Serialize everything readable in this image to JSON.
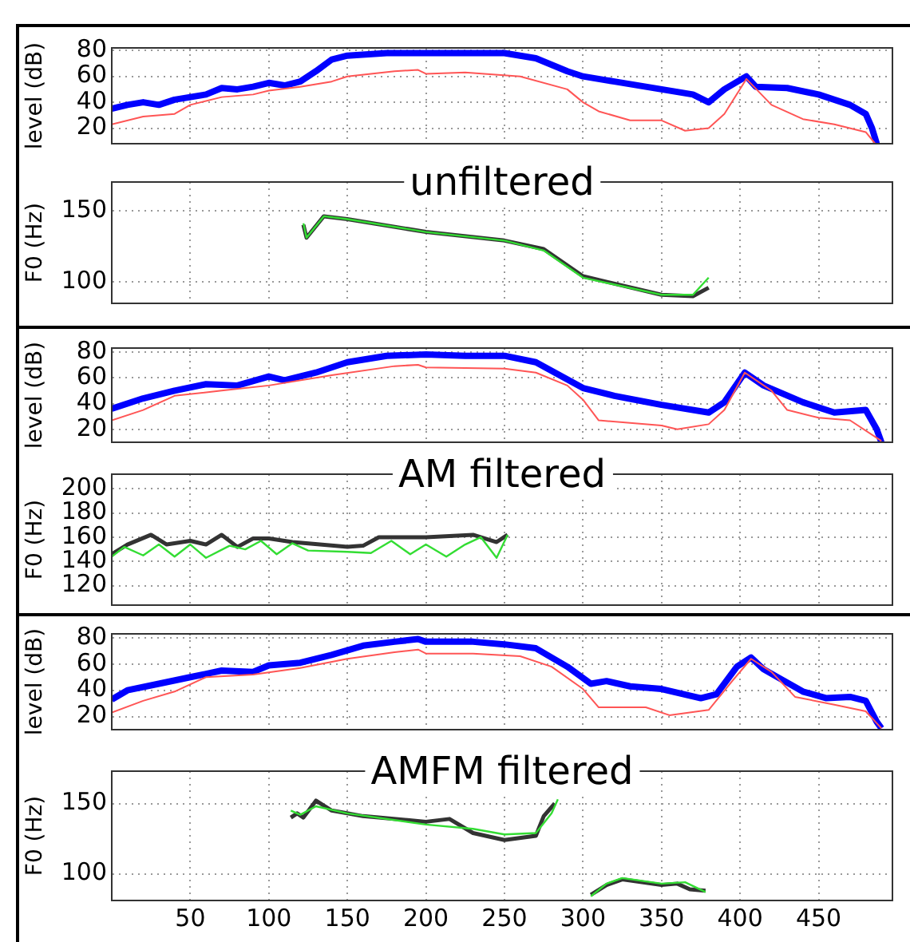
{
  "chart_data": [
    {
      "type": "line",
      "ylabel": "level (dB)",
      "xlim": [
        0,
        497
      ],
      "xticks": [
        50,
        100,
        150,
        200,
        250,
        300,
        350,
        400,
        450
      ],
      "ylim": [
        8,
        82
      ],
      "yticks": [
        20,
        40,
        60,
        80
      ],
      "grid": true,
      "legend": false,
      "marker": "none",
      "tick_labels": "y",
      "series": [
        {
          "color": "#0000ff",
          "x": [
            0,
            10,
            20,
            30,
            40,
            50,
            60,
            70,
            80,
            90,
            100,
            110,
            120,
            130,
            140,
            150,
            175,
            200,
            250,
            270,
            290,
            300,
            320,
            350,
            370,
            380,
            390,
            404,
            410,
            430,
            450,
            470,
            480,
            484,
            487
          ],
          "values": [
            35,
            38,
            40,
            38,
            42,
            44,
            46,
            51,
            50,
            52,
            55,
            53,
            56,
            64,
            73,
            76,
            78,
            78,
            78,
            74,
            64,
            60,
            56,
            50,
            46,
            40,
            50,
            60,
            52,
            51,
            46,
            38,
            31,
            20,
            8
          ]
        },
        {
          "color": "#ff5555",
          "x": [
            0,
            20,
            40,
            50,
            70,
            90,
            100,
            120,
            140,
            150,
            180,
            195,
            200,
            225,
            260,
            290,
            300,
            310,
            330,
            350,
            365,
            380,
            390,
            404,
            420,
            440,
            460,
            480,
            486
          ],
          "values": [
            23,
            29,
            31,
            38,
            44,
            46,
            49,
            52,
            56,
            60,
            64,
            65,
            62,
            63,
            60,
            50,
            40,
            33,
            26,
            26,
            18,
            20,
            31,
            58,
            38,
            27,
            23,
            17,
            8
          ]
        }
      ]
    },
    {
      "type": "line",
      "title": "unfiltered",
      "ylabel": "F0 (Hz)",
      "xlim": [
        0,
        497
      ],
      "xticks": [
        50,
        100,
        150,
        200,
        250,
        300,
        350,
        400,
        450
      ],
      "ylim": [
        85,
        170
      ],
      "yticks": [
        100,
        150
      ],
      "grid": true,
      "legend": false,
      "marker": "none",
      "tick_labels": "y",
      "series": [
        {
          "color": "#333333",
          "x": [
            122,
            124,
            135,
            150,
            200,
            250,
            275,
            300,
            350,
            370,
            380
          ],
          "values": [
            140,
            131,
            146,
            144,
            135,
            129,
            123,
            104,
            91,
            90,
            96
          ]
        },
        {
          "color": "#33dd33",
          "x": [
            122,
            124,
            135,
            150,
            200,
            250,
            275,
            300,
            350,
            370,
            380
          ],
          "values": [
            141,
            131,
            146,
            144,
            135,
            129,
            122,
            103,
            91,
            91,
            103
          ]
        }
      ]
    },
    {
      "type": "line",
      "ylabel": "level (dB)",
      "xlim": [
        0,
        497
      ],
      "xticks": [
        50,
        100,
        150,
        200,
        250,
        300,
        350,
        400,
        450
      ],
      "ylim": [
        10,
        83
      ],
      "yticks": [
        20,
        40,
        60,
        80
      ],
      "grid": true,
      "legend": false,
      "marker": "none",
      "tick_labels": "y",
      "series": [
        {
          "color": "#0000ff",
          "x": [
            0,
            20,
            40,
            60,
            80,
            100,
            110,
            130,
            150,
            175,
            200,
            225,
            250,
            270,
            300,
            320,
            350,
            380,
            390,
            403,
            415,
            440,
            460,
            480,
            487,
            490
          ],
          "values": [
            36,
            44,
            50,
            55,
            54,
            61,
            58,
            64,
            72,
            77,
            78,
            77,
            77,
            72,
            52,
            46,
            39,
            33,
            41,
            64,
            54,
            41,
            33,
            35,
            20,
            10
          ]
        },
        {
          "color": "#ff5555",
          "x": [
            0,
            20,
            40,
            70,
            100,
            140,
            180,
            195,
            200,
            250,
            270,
            290,
            300,
            310,
            350,
            360,
            380,
            390,
            403,
            420,
            430,
            450,
            470,
            490
          ],
          "values": [
            27,
            35,
            46,
            50,
            54,
            62,
            69,
            70,
            68,
            67,
            64,
            54,
            43,
            27,
            23,
            20,
            24,
            35,
            64,
            50,
            35,
            29,
            27,
            11
          ]
        }
      ]
    },
    {
      "type": "line",
      "title": "AM filtered",
      "ylabel": "F0 (Hz)",
      "xlim": [
        0,
        497
      ],
      "xticks": [
        50,
        100,
        150,
        200,
        250,
        300,
        350,
        400,
        450
      ],
      "ylim": [
        104,
        212
      ],
      "yticks": [
        120,
        140,
        160,
        180,
        200
      ],
      "grid": true,
      "legend": false,
      "marker": "none",
      "tick_labels": "y",
      "series": [
        {
          "color": "#333333",
          "x": [
            0,
            10,
            25,
            35,
            50,
            60,
            70,
            80,
            90,
            100,
            115,
            150,
            160,
            170,
            200,
            230,
            245,
            252
          ],
          "values": [
            146,
            154,
            162,
            154,
            157,
            154,
            162,
            152,
            159,
            159,
            156,
            152,
            153,
            160,
            160,
            162,
            156,
            162
          ]
        },
        {
          "color": "#33dd33",
          "x": [
            0,
            8,
            20,
            30,
            40,
            50,
            60,
            75,
            85,
            95,
            105,
            115,
            125,
            150,
            165,
            178,
            190,
            200,
            213,
            225,
            235,
            245,
            252
          ],
          "values": [
            144,
            152,
            145,
            154,
            144,
            154,
            143,
            153,
            150,
            157,
            146,
            155,
            149,
            148,
            147,
            157,
            146,
            154,
            144,
            154,
            160,
            143,
            162
          ]
        }
      ]
    },
    {
      "type": "line",
      "ylabel": "level (dB)",
      "xlim": [
        0,
        497
      ],
      "xticks": [
        50,
        100,
        150,
        200,
        250,
        300,
        350,
        400,
        450
      ],
      "ylim": [
        10,
        83
      ],
      "yticks": [
        20,
        40,
        60,
        80
      ],
      "grid": true,
      "legend": false,
      "marker": "none",
      "tick_labels": "y",
      "series": [
        {
          "color": "#0000ff",
          "x": [
            0,
            10,
            30,
            50,
            70,
            90,
            100,
            120,
            140,
            160,
            180,
            195,
            200,
            230,
            250,
            270,
            290,
            305,
            315,
            330,
            350,
            375,
            385,
            398,
            407,
            415,
            440,
            455,
            470,
            480,
            487,
            490
          ],
          "values": [
            33,
            40,
            45,
            50,
            55,
            54,
            59,
            61,
            67,
            74,
            77,
            79,
            77,
            77,
            75,
            72,
            58,
            45,
            47,
            43,
            41,
            34,
            37,
            58,
            65,
            56,
            39,
            34,
            35,
            32,
            16,
            11
          ]
        },
        {
          "color": "#ff5555",
          "x": [
            0,
            20,
            40,
            60,
            90,
            120,
            150,
            180,
            195,
            200,
            230,
            260,
            280,
            300,
            310,
            340,
            355,
            380,
            395,
            407,
            420,
            435,
            460,
            480,
            490
          ],
          "values": [
            23,
            32,
            39,
            50,
            52,
            57,
            64,
            69,
            71,
            68,
            68,
            66,
            58,
            41,
            27,
            27,
            21,
            25,
            47,
            64,
            54,
            35,
            29,
            24,
            11
          ]
        }
      ]
    },
    {
      "type": "line",
      "title": "AMFM filtered",
      "ylabel": "F0 (Hz)",
      "xlim": [
        0,
        497
      ],
      "xticks": [
        50,
        100,
        150,
        200,
        250,
        300,
        350,
        400,
        450
      ],
      "ylim": [
        81,
        173
      ],
      "yticks": [
        100,
        150
      ],
      "grid": true,
      "legend": false,
      "marker": "none",
      "series": [
        {
          "color": "#333333",
          "x": [
            114,
            118,
            122,
            130,
            140,
            160,
            200,
            215,
            230,
            250,
            270,
            275,
            282,
            295,
            305,
            315,
            325,
            350,
            360,
            368,
            378
          ],
          "values": [
            140,
            143,
            140,
            152,
            145,
            141,
            137,
            139,
            129,
            124,
            127,
            141,
            150,
            null,
            85,
            92,
            96,
            92,
            93,
            89,
            88
          ]
        },
        {
          "color": "#33dd33",
          "x": [
            114,
            120,
            130,
            150,
            200,
            230,
            250,
            270,
            280,
            284,
            295,
            305,
            315,
            325,
            350,
            365,
            378
          ],
          "values": [
            145,
            142,
            148,
            143,
            135,
            132,
            128,
            129,
            143,
            153,
            null,
            84,
            93,
            97,
            93,
            94,
            87
          ]
        }
      ]
    }
  ]
}
